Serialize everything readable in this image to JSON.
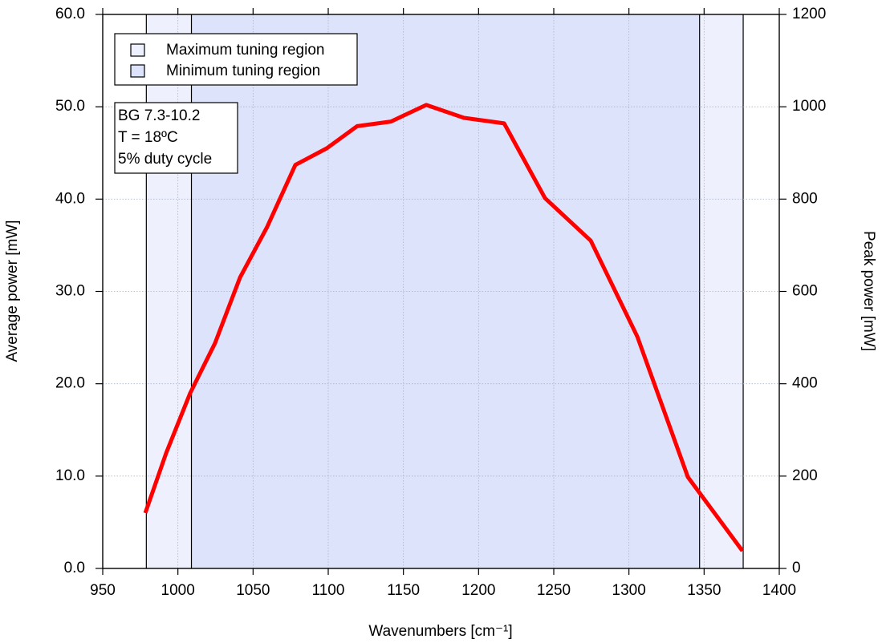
{
  "chart_data": {
    "type": "line",
    "x_label": "Wavenumbers [cm⁻¹]",
    "y_label": "Average power [mW]",
    "y2_label": "Peak power [mW]",
    "x": [
      978.3,
      992.2,
      1008.2,
      1024.7,
      1041.3,
      1059.4,
      1078.1,
      1099,
      1119.2,
      1141.7,
      1165.2,
      1190.3,
      1217,
      1244.2,
      1274.6,
      1305.6,
      1339.2,
      1375.5
    ],
    "series": [
      {
        "color": "#ff0000",
        "values": [
          6.0,
          12.5,
          19.0,
          24.4,
          31.5,
          37.0,
          43.7,
          45.5,
          47.9,
          48.4,
          50.2,
          48.8,
          48.2,
          40.1,
          35.5,
          25.1,
          9.9,
          1.9
        ]
      }
    ],
    "xlim": [
      950,
      1400
    ],
    "ylim": [
      0,
      60
    ],
    "y2lim": [
      0,
      1200
    ],
    "xticks": [
      950,
      1000,
      1050,
      1100,
      1150,
      1200,
      1250,
      1300,
      1350,
      1400
    ],
    "yticks": [
      {
        "value": 0,
        "label": "0.0"
      },
      {
        "value": 10,
        "label": "10.0"
      },
      {
        "value": 20,
        "label": "20.0"
      },
      {
        "value": 30,
        "label": "30.0"
      },
      {
        "value": 40,
        "label": "40.0"
      },
      {
        "value": 50,
        "label": "50.0"
      },
      {
        "value": 60,
        "label": "60.0"
      }
    ],
    "y2ticks": [
      0,
      200,
      400,
      600,
      800,
      1000,
      1200
    ],
    "grid": true,
    "regions": [
      {
        "name": "Maximum tuning region",
        "range": [
          979,
          1376
        ],
        "color": "#eef1fd"
      },
      {
        "name": "Minimum tuning region",
        "range": [
          1009,
          1347
        ],
        "color": "#dde3fa"
      }
    ],
    "legend": "upper left",
    "annotation": [
      "BG 7.3-10.2",
      "T = 18ºC",
      "5% duty cycle"
    ]
  }
}
